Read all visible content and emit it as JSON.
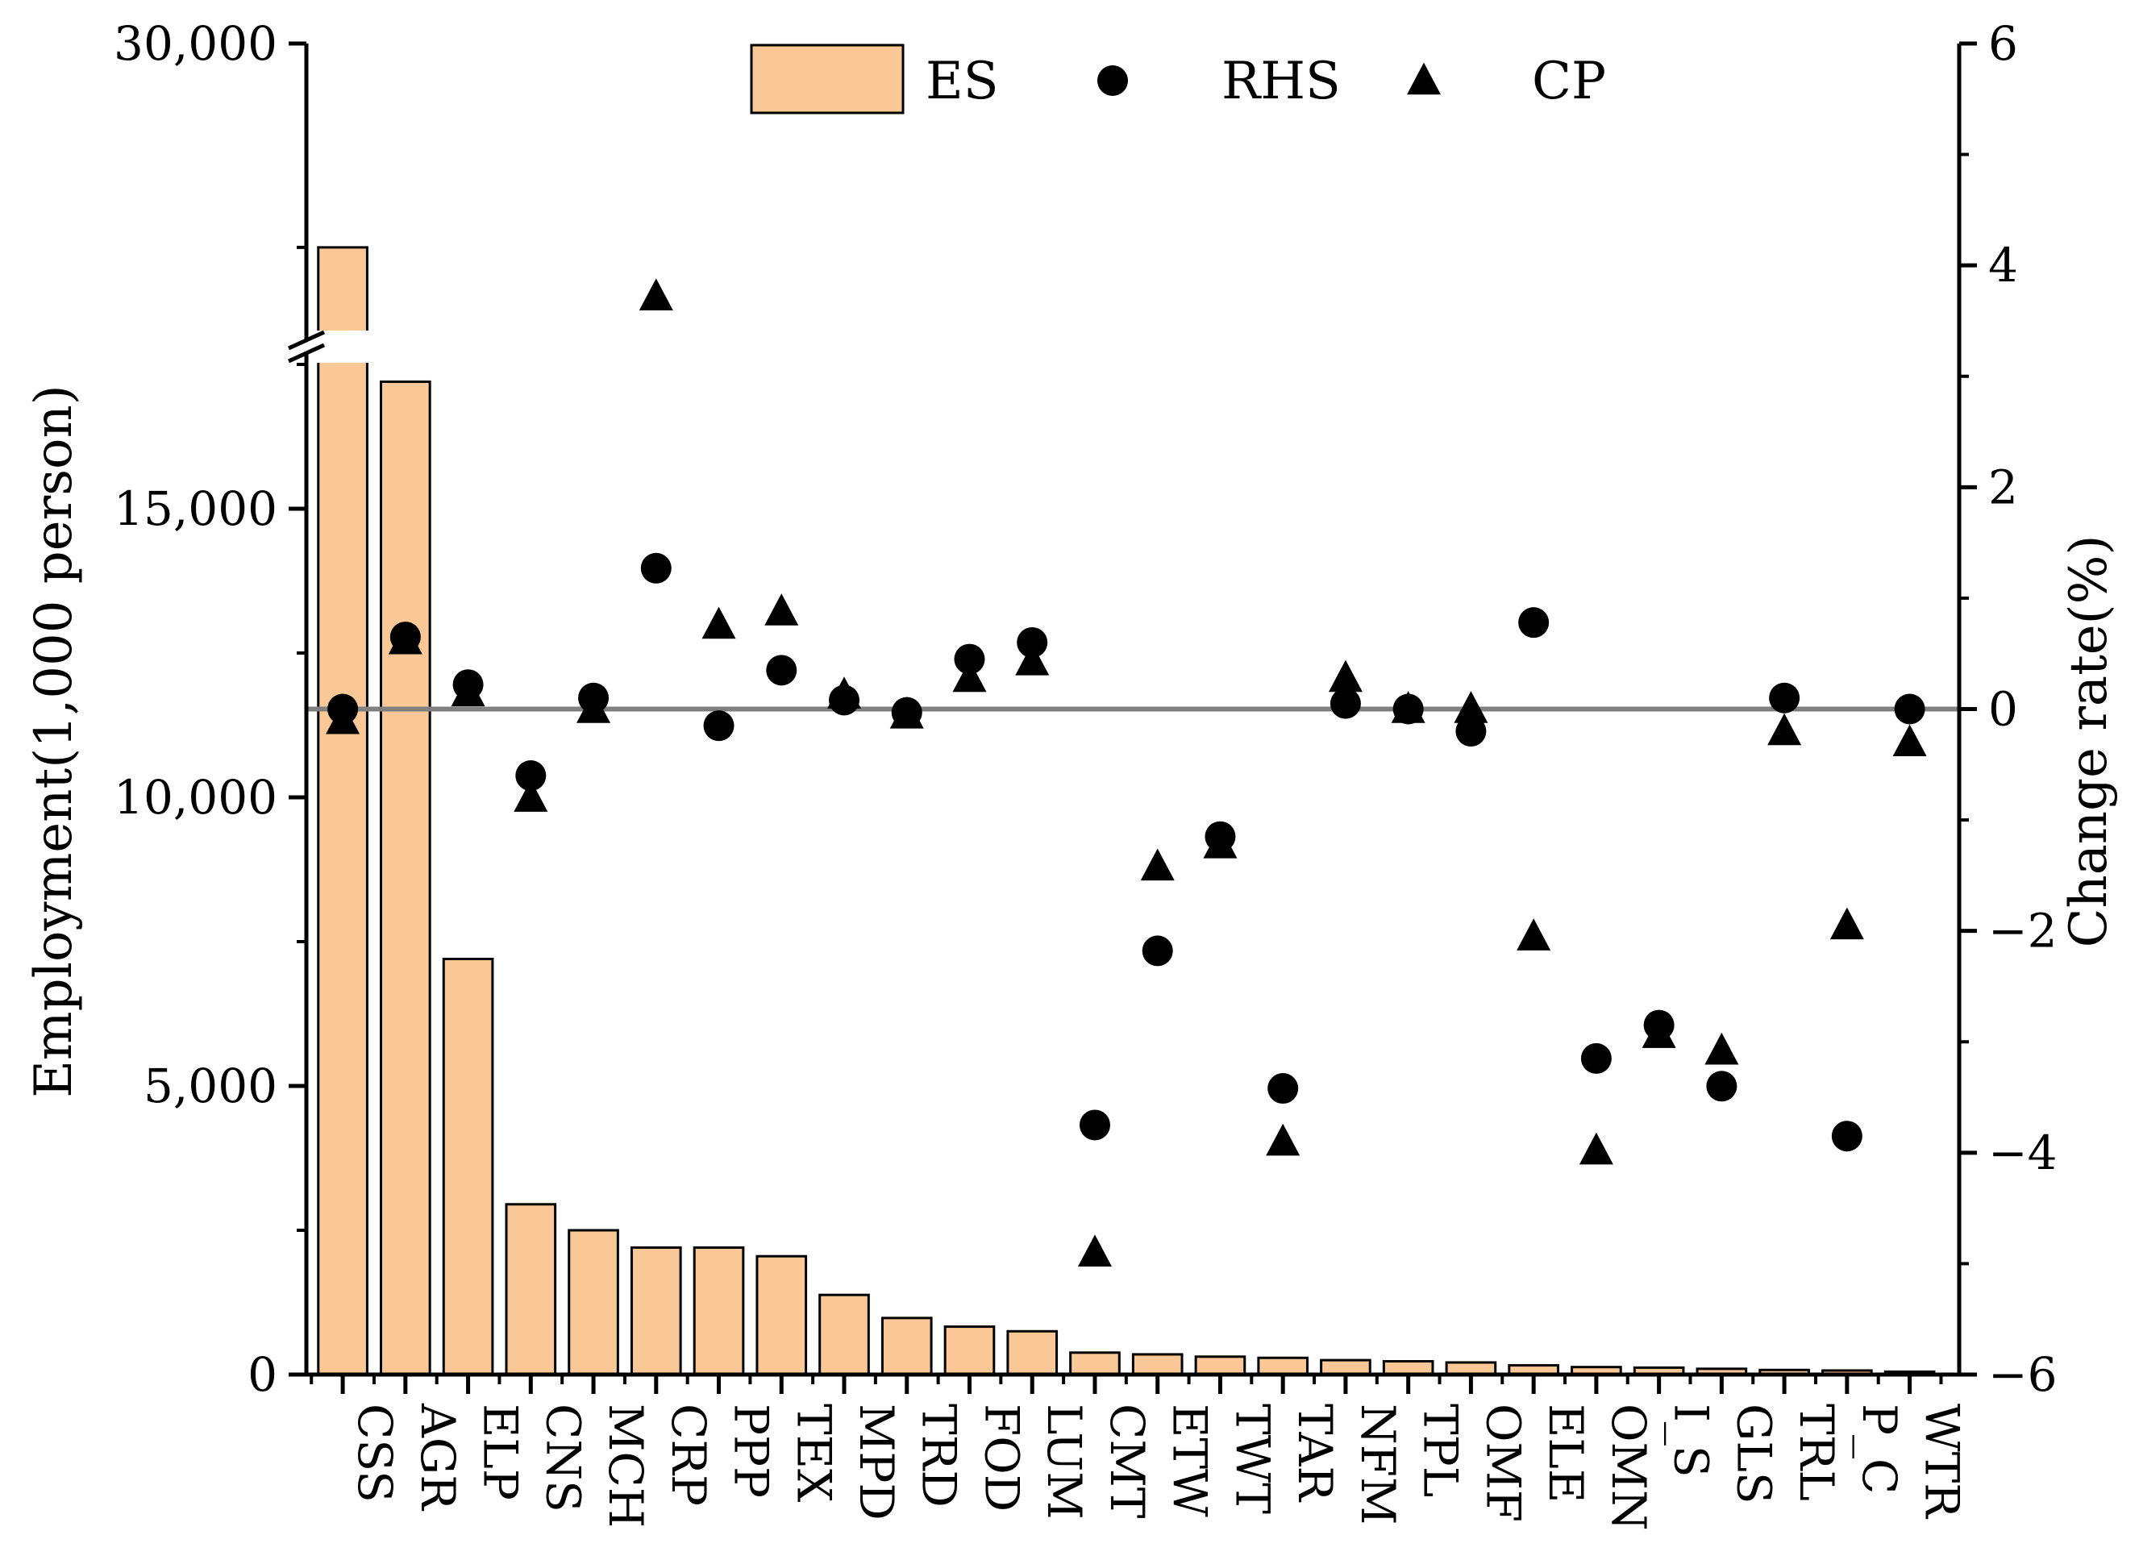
{
  "chart_data": {
    "type": "bar",
    "title": "",
    "categories": [
      "CSS",
      "AGR",
      "ELP",
      "CNS",
      "MCH",
      "CRP",
      "PPP",
      "TEX",
      "MPD",
      "TRD",
      "FOD",
      "LUM",
      "CMT",
      "ETW",
      "TWT",
      "TAR",
      "NFM",
      "TPL",
      "OMF",
      "ELE",
      "OMN",
      "I_S",
      "GLS",
      "TRL",
      "P_C",
      "WTR"
    ],
    "series": [
      {
        "name": "ES",
        "axis": "left",
        "kind": "bar",
        "values": [
          27500,
          17200,
          7200,
          2950,
          2500,
          2200,
          2200,
          2050,
          1380,
          980,
          830,
          750,
          380,
          350,
          310,
          290,
          250,
          230,
          210,
          160,
          130,
          120,
          100,
          80,
          70,
          50
        ]
      },
      {
        "name": "RHS",
        "axis": "right",
        "kind": "scatter-circle",
        "values": [
          0.0,
          0.65,
          0.22,
          -0.6,
          0.1,
          1.27,
          -0.15,
          0.35,
          0.08,
          -0.03,
          0.45,
          0.6,
          -3.75,
          -2.18,
          -1.15,
          -3.42,
          0.05,
          0.0,
          -0.2,
          0.78,
          -3.15,
          -2.85,
          -3.4,
          0.1,
          -3.85,
          0.0
        ]
      },
      {
        "name": "CP",
        "axis": "right",
        "kind": "scatter-triangle",
        "values": [
          -0.1,
          0.62,
          0.15,
          -0.8,
          0.0,
          3.72,
          0.76,
          0.88,
          0.13,
          -0.05,
          0.28,
          0.43,
          -4.9,
          -1.42,
          -1.22,
          -3.9,
          0.28,
          0.0,
          0.0,
          -2.05,
          -3.98,
          -2.93,
          -3.08,
          -0.2,
          -1.95,
          -0.3
        ]
      }
    ],
    "left_axis": {
      "label": "Employment(1,000 person)",
      "lower_range": [
        0,
        17500
      ],
      "upper_range": [
        26500,
        30000
      ],
      "break": true,
      "ticks": [
        {
          "value": 0,
          "label": "0"
        },
        {
          "value": 5000,
          "label": "5,000"
        },
        {
          "value": 10000,
          "label": "10,000"
        },
        {
          "value": 15000,
          "label": "15,000"
        },
        {
          "value": 30000,
          "label": "30,000"
        }
      ]
    },
    "right_axis": {
      "label": "Change rate(%)",
      "ylim": [
        -6,
        6
      ],
      "ticks": [
        {
          "value": -6,
          "label": "−6"
        },
        {
          "value": -4,
          "label": "−4"
        },
        {
          "value": -2,
          "label": "−2"
        },
        {
          "value": 0,
          "label": "0"
        },
        {
          "value": 2,
          "label": "2"
        },
        {
          "value": 4,
          "label": "4"
        },
        {
          "value": 6,
          "label": "6"
        }
      ]
    },
    "legend": {
      "position": "top-center",
      "items": [
        {
          "label": "ES",
          "marker": "bar"
        },
        {
          "label": "RHS",
          "marker": "circle"
        },
        {
          "label": "CP",
          "marker": "triangle"
        }
      ]
    },
    "reference_line": {
      "axis": "right",
      "value": 0
    }
  },
  "colors": {
    "bar_fill": "#F9C896",
    "marker": "#000000",
    "zero_line": "#808080",
    "axis": "#000000"
  }
}
